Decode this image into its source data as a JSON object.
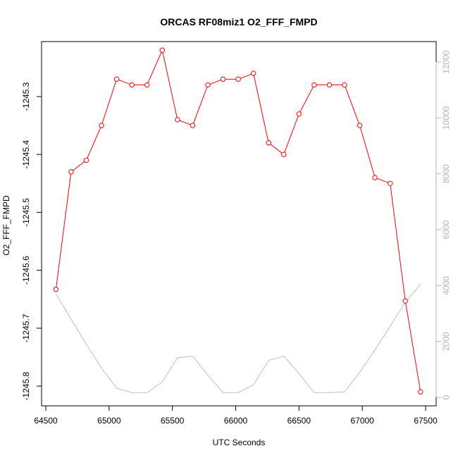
{
  "chart_data": {
    "type": "line",
    "title": "ORCAS RF08miz1 O2_FFF_FMPD",
    "xlabel": "UTC Seconds",
    "ylabel": "O2_FFF_FMPD",
    "xlim": [
      64500,
      67500
    ],
    "ylim": [
      -1245.82,
      -1245.21
    ],
    "y2lim": [
      0,
      12500
    ],
    "x_ticks": [
      64500,
      65000,
      65500,
      66000,
      66500,
      67000,
      67500
    ],
    "y_ticks": [
      -1245.3,
      -1245.4,
      -1245.5,
      -1245.6,
      -1245.7,
      -1245.8
    ],
    "y_tick_labels": [
      "-1245.3",
      "-1245.4",
      "-1245.5",
      "-1245.6",
      "-1245.7",
      "-1245.8"
    ],
    "y2_ticks": [
      0,
      2000,
      4000,
      6000,
      8000,
      10000,
      12000
    ],
    "colors": {
      "primary": "#ff0000",
      "secondary": "#bebebe",
      "axis": "#000000",
      "right_axis": "#b3b3b3"
    },
    "series": [
      {
        "axis": "left",
        "x": [
          64580,
          64700,
          64820,
          64940,
          65060,
          65180,
          65300,
          65420,
          65540,
          65660,
          65780,
          65900,
          66020,
          66140,
          66260,
          66380,
          66500,
          66620,
          66740,
          66860,
          66980,
          67100,
          67220,
          67340,
          67460
        ],
        "values": [
          -1245.633,
          -1245.43,
          -1245.41,
          -1245.35,
          -1245.27,
          -1245.28,
          -1245.28,
          -1245.22,
          -1245.34,
          -1245.35,
          -1245.28,
          -1245.27,
          -1245.27,
          -1245.26,
          -1245.38,
          -1245.4,
          -1245.33,
          -1245.28,
          -1245.28,
          -1245.28,
          -1245.35,
          -1245.44,
          -1245.45,
          -1245.653,
          -1245.81
        ]
      },
      {
        "axis": "right",
        "x": [
          64580,
          64700,
          64820,
          64940,
          65060,
          65180,
          65300,
          65420,
          65540,
          65660,
          65780,
          65900,
          66020,
          66140,
          66260,
          66380,
          66500,
          66620,
          66740,
          66860,
          66980,
          67100,
          67220,
          67340,
          67460
        ],
        "values": [
          3700,
          2800,
          1900,
          1050,
          330,
          170,
          170,
          550,
          1420,
          1480,
          800,
          170,
          170,
          450,
          1320,
          1480,
          850,
          170,
          170,
          200,
          900,
          1700,
          2550,
          3400,
          4050
        ]
      }
    ]
  }
}
